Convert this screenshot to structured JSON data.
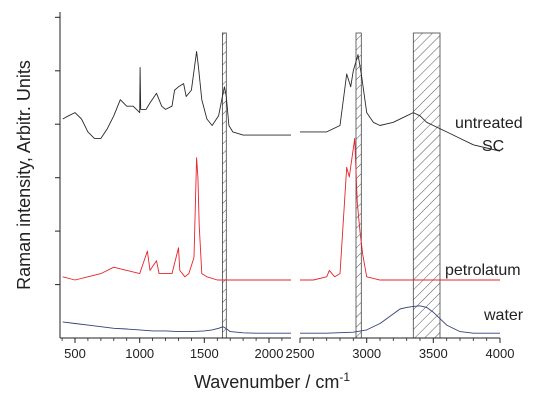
{
  "chart_data": {
    "type": "line",
    "xlabel": "Wavenumber / cm",
    "xlabel_superscript": "-1",
    "ylabel": "Raman intensity, Arbitr. Units",
    "x_axis_break": [
      2170,
      2500
    ],
    "xlim": [
      400,
      4000
    ],
    "x_ticks": [
      500,
      1000,
      1500,
      2000,
      2500,
      3000,
      3500,
      4000
    ],
    "y_ticks_shown": 6,
    "grid": false,
    "highlight_regions": [
      {
        "range": [
          1640,
          1670
        ],
        "fill": "hatched"
      },
      {
        "range": [
          2920,
          2960
        ],
        "fill": "hatched"
      },
      {
        "range": [
          3350,
          3550
        ],
        "fill": "hatched"
      }
    ],
    "series": [
      {
        "name": "untreated SC",
        "color": "#2a2a2a",
        "segments": [
          [
            [
              405,
              0.68
            ],
            [
              450,
              0.69
            ],
            [
              500,
              0.7
            ],
            [
              550,
              0.68
            ],
            [
              600,
              0.64
            ],
            [
              650,
              0.62
            ],
            [
              700,
              0.62
            ],
            [
              750,
              0.65
            ],
            [
              800,
              0.69
            ],
            [
              850,
              0.74
            ],
            [
              900,
              0.72
            ],
            [
              950,
              0.72
            ],
            [
              1000,
              0.7
            ],
            [
              1003,
              0.84
            ],
            [
              1008,
              0.71
            ],
            [
              1050,
              0.71
            ],
            [
              1080,
              0.73
            ],
            [
              1130,
              0.76
            ],
            [
              1170,
              0.72
            ],
            [
              1200,
              0.71
            ],
            [
              1250,
              0.72
            ],
            [
              1270,
              0.77
            ],
            [
              1300,
              0.78
            ],
            [
              1340,
              0.79
            ],
            [
              1360,
              0.75
            ],
            [
              1400,
              0.77
            ],
            [
              1440,
              0.89
            ],
            [
              1455,
              0.84
            ],
            [
              1480,
              0.74
            ],
            [
              1520,
              0.68
            ],
            [
              1560,
              0.66
            ],
            [
              1610,
              0.69
            ],
            [
              1640,
              0.75
            ],
            [
              1655,
              0.78
            ],
            [
              1670,
              0.75
            ],
            [
              1690,
              0.66
            ],
            [
              1720,
              0.64
            ],
            [
              1800,
              0.63
            ],
            [
              1900,
              0.63
            ],
            [
              2000,
              0.63
            ],
            [
              2100,
              0.63
            ],
            [
              2170,
              0.63
            ]
          ],
          [
            [
              2500,
              0.64
            ],
            [
              2600,
              0.64
            ],
            [
              2700,
              0.64
            ],
            [
              2800,
              0.66
            ],
            [
              2850,
              0.82
            ],
            [
              2880,
              0.78
            ],
            [
              2900,
              0.83
            ],
            [
              2935,
              0.88
            ],
            [
              2960,
              0.82
            ],
            [
              3000,
              0.7
            ],
            [
              3050,
              0.67
            ],
            [
              3100,
              0.66
            ],
            [
              3200,
              0.67
            ],
            [
              3300,
              0.69
            ],
            [
              3350,
              0.7
            ],
            [
              3400,
              0.69
            ],
            [
              3450,
              0.67
            ],
            [
              3500,
              0.66
            ],
            [
              3600,
              0.64
            ],
            [
              3700,
              0.62
            ],
            [
              3800,
              0.6
            ],
            [
              3900,
              0.59
            ],
            [
              4000,
              0.58
            ]
          ]
        ]
      },
      {
        "name": "petrolatum",
        "color": "#e8232a",
        "segments": [
          [
            [
              405,
              0.19
            ],
            [
              500,
              0.18
            ],
            [
              600,
              0.19
            ],
            [
              700,
              0.2
            ],
            [
              800,
              0.22
            ],
            [
              900,
              0.21
            ],
            [
              1000,
              0.2
            ],
            [
              1060,
              0.27
            ],
            [
              1080,
              0.21
            ],
            [
              1130,
              0.24
            ],
            [
              1150,
              0.2
            ],
            [
              1200,
              0.2
            ],
            [
              1250,
              0.2
            ],
            [
              1300,
              0.28
            ],
            [
              1310,
              0.21
            ],
            [
              1350,
              0.19
            ],
            [
              1380,
              0.2
            ],
            [
              1420,
              0.25
            ],
            [
              1440,
              0.56
            ],
            [
              1450,
              0.5
            ],
            [
              1460,
              0.35
            ],
            [
              1480,
              0.2
            ],
            [
              1520,
              0.19
            ],
            [
              1600,
              0.18
            ],
            [
              1700,
              0.18
            ],
            [
              1800,
              0.18
            ],
            [
              1900,
              0.18
            ],
            [
              2000,
              0.18
            ],
            [
              2100,
              0.18
            ],
            [
              2170,
              0.18
            ]
          ],
          [
            [
              2500,
              0.18
            ],
            [
              2600,
              0.18
            ],
            [
              2700,
              0.19
            ],
            [
              2720,
              0.21
            ],
            [
              2760,
              0.19
            ],
            [
              2800,
              0.2
            ],
            [
              2850,
              0.53
            ],
            [
              2870,
              0.5
            ],
            [
              2890,
              0.56
            ],
            [
              2910,
              0.62
            ],
            [
              2930,
              0.42
            ],
            [
              2950,
              0.33
            ],
            [
              2970,
              0.26
            ],
            [
              3000,
              0.19
            ],
            [
              3100,
              0.18
            ],
            [
              3500,
              0.18
            ],
            [
              4000,
              0.18
            ]
          ]
        ]
      },
      {
        "name": "water",
        "color": "#35407a",
        "segments": [
          [
            [
              405,
              0.05
            ],
            [
              500,
              0.045
            ],
            [
              600,
              0.04
            ],
            [
              700,
              0.035
            ],
            [
              800,
              0.03
            ],
            [
              900,
              0.028
            ],
            [
              1000,
              0.025
            ],
            [
              1100,
              0.022
            ],
            [
              1200,
              0.022
            ],
            [
              1300,
              0.02
            ],
            [
              1400,
              0.02
            ],
            [
              1500,
              0.022
            ],
            [
              1560,
              0.025
            ],
            [
              1610,
              0.03
            ],
            [
              1645,
              0.035
            ],
            [
              1665,
              0.03
            ],
            [
              1700,
              0.02
            ],
            [
              1800,
              0.016
            ],
            [
              1900,
              0.015
            ],
            [
              2000,
              0.015
            ],
            [
              2170,
              0.015
            ]
          ],
          [
            [
              2500,
              0.015
            ],
            [
              2700,
              0.015
            ],
            [
              2900,
              0.018
            ],
            [
              3000,
              0.025
            ],
            [
              3100,
              0.045
            ],
            [
              3200,
              0.075
            ],
            [
              3250,
              0.09
            ],
            [
              3300,
              0.095
            ],
            [
              3350,
              0.098
            ],
            [
              3400,
              0.1
            ],
            [
              3450,
              0.095
            ],
            [
              3500,
              0.08
            ],
            [
              3550,
              0.06
            ],
            [
              3600,
              0.04
            ],
            [
              3700,
              0.02
            ],
            [
              3800,
              0.015
            ],
            [
              4000,
              0.015
            ]
          ]
        ]
      }
    ],
    "labels": {
      "untreated_line1": "untreated",
      "untreated_line2": "SC",
      "petrolatum": "petrolatum",
      "water": "water"
    }
  }
}
